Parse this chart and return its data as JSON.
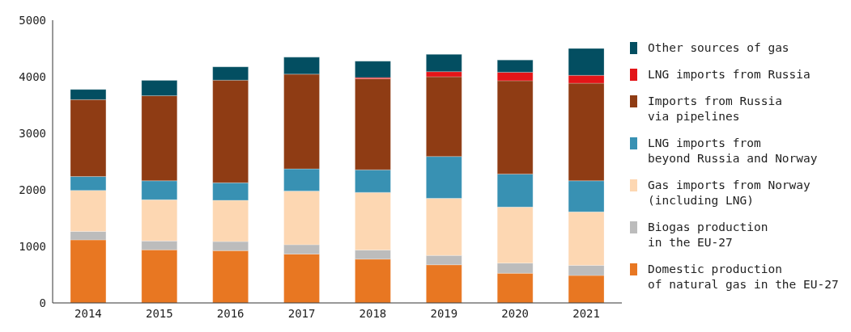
{
  "chart_data": {
    "type": "bar",
    "stacked": true,
    "categories": [
      "2014",
      "2015",
      "2016",
      "2017",
      "2018",
      "2019",
      "2020",
      "2021"
    ],
    "ylim": [
      0,
      5000
    ],
    "yticks": [
      0,
      1000,
      2000,
      3000,
      4000,
      5000
    ],
    "grid": false,
    "legend": "right",
    "series": [
      {
        "name": "Domestic production\nof natural gas in the EU-27",
        "color": "#e87722",
        "values": [
          1115,
          940,
          925,
          865,
          775,
          675,
          525,
          485
        ]
      },
      {
        "name": "Biogas production\nin the EU-27",
        "color": "#bcbcbc",
        "values": [
          150,
          155,
          160,
          165,
          160,
          165,
          180,
          180
        ]
      },
      {
        "name": "Gas imports from Norway\n(including LNG)",
        "color": "#fdd7b2",
        "values": [
          725,
          730,
          730,
          950,
          1020,
          1010,
          990,
          945
        ]
      },
      {
        "name": "LNG imports from\nbeyond Russia and Norway",
        "color": "#3891b3",
        "values": [
          245,
          335,
          310,
          390,
          400,
          740,
          585,
          550
        ]
      },
      {
        "name": "Imports from Russia\nvia pipelines",
        "color": "#8f3c14",
        "values": [
          1360,
          1505,
          1815,
          1675,
          1610,
          1410,
          1650,
          1725
        ]
      },
      {
        "name": "LNG imports from Russia",
        "color": "#e31518",
        "values": [
          0,
          0,
          0,
          0,
          20,
          90,
          150,
          140
        ]
      },
      {
        "name": "Other sources of gas",
        "color": "#034e61",
        "values": [
          180,
          270,
          235,
          300,
          290,
          305,
          215,
          475
        ]
      }
    ]
  }
}
